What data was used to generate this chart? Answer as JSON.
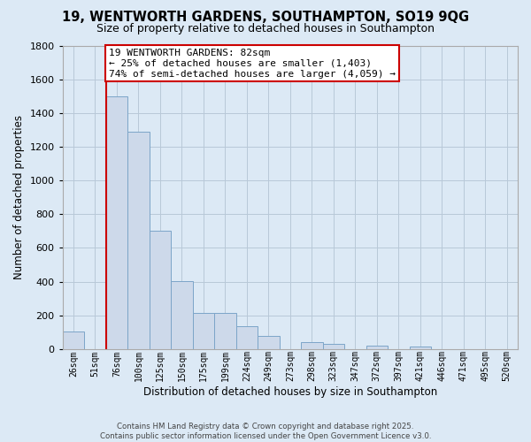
{
  "title": "19, WENTWORTH GARDENS, SOUTHAMPTON, SO19 9QG",
  "subtitle": "Size of property relative to detached houses in Southampton",
  "xlabel": "Distribution of detached houses by size in Southampton",
  "ylabel": "Number of detached properties",
  "bar_color": "#cdd9ea",
  "bar_edge_color": "#7ca5c8",
  "background_color": "#dce9f5",
  "plot_bg_color": "#dce9f5",
  "grid_color": "#b8c8d8",
  "categories": [
    "26sqm",
    "51sqm",
    "76sqm",
    "100sqm",
    "125sqm",
    "150sqm",
    "175sqm",
    "199sqm",
    "224sqm",
    "249sqm",
    "273sqm",
    "298sqm",
    "323sqm",
    "347sqm",
    "372sqm",
    "397sqm",
    "421sqm",
    "446sqm",
    "471sqm",
    "495sqm",
    "520sqm"
  ],
  "values": [
    105,
    0,
    1500,
    1290,
    700,
    405,
    215,
    215,
    135,
    80,
    0,
    42,
    28,
    0,
    18,
    0,
    15,
    0,
    0,
    0,
    0
  ],
  "ylim": [
    0,
    1800
  ],
  "yticks": [
    0,
    200,
    400,
    600,
    800,
    1000,
    1200,
    1400,
    1600,
    1800
  ],
  "vline_x": 2.5,
  "vline_color": "#cc0000",
  "annotation_title": "19 WENTWORTH GARDENS: 82sqm",
  "annotation_line1": "← 25% of detached houses are smaller (1,403)",
  "annotation_line2": "74% of semi-detached houses are larger (4,059) →",
  "annotation_box_color": "#ffffff",
  "annotation_box_edge": "#cc0000",
  "footer_line1": "Contains HM Land Registry data © Crown copyright and database right 2025.",
  "footer_line2": "Contains public sector information licensed under the Open Government Licence v3.0."
}
